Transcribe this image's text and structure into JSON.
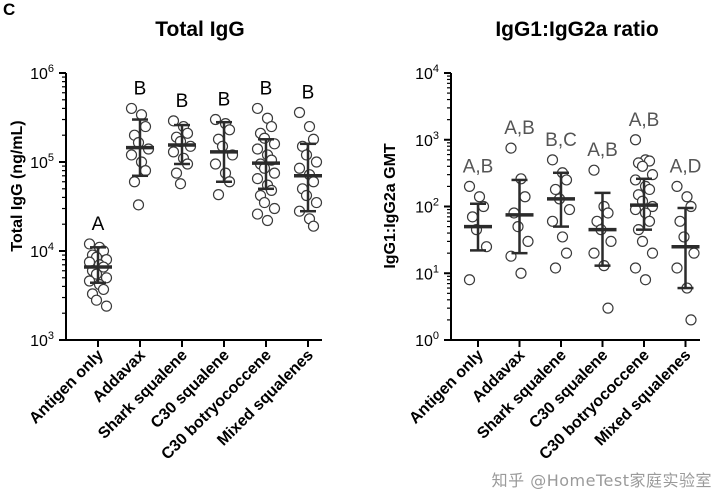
{
  "panel_letter": "C",
  "watermark": "知乎 @HomeTest家庭实验室",
  "colors": {
    "point": "#3a3a3a",
    "bar": "#2b2b2b",
    "axis": "#000000",
    "letter": "#555555"
  },
  "chart_data": [
    {
      "type": "scatter",
      "title": "Total IgG",
      "ylabel": "Total IgG (ng/mL)",
      "yscale": "log",
      "ylim": [
        1000,
        1000000
      ],
      "yticks": [
        {
          "value": 1000,
          "base": "10",
          "exp": "3"
        },
        {
          "value": 10000,
          "base": "10",
          "exp": "4"
        },
        {
          "value": 100000,
          "base": "10",
          "exp": "5"
        },
        {
          "value": 1000000,
          "base": "10",
          "exp": "6"
        }
      ],
      "categories": [
        "Antigen only",
        "Addavax",
        "Shark squalene",
        "C30 squalene",
        "C30 botryococcene",
        "Mixed squalenes"
      ],
      "letters": [
        "A",
        "B",
        "B",
        "B",
        "B",
        "B"
      ],
      "gmt": [
        6600,
        145000,
        155000,
        130000,
        97000,
        70000
      ],
      "sd_low": [
        4400,
        70000,
        95000,
        60000,
        50000,
        28000
      ],
      "sd_high": [
        11000,
        300000,
        260000,
        280000,
        180000,
        160000
      ],
      "points": [
        [
          12000,
          11000,
          10000,
          9000,
          8500,
          8000,
          7500,
          7000,
          6600,
          6000,
          5500,
          5000,
          4600,
          4200,
          3700,
          3300,
          2800,
          2400
        ],
        [
          400000,
          340000,
          250000,
          200000,
          165000,
          140000,
          120000,
          100000,
          80000,
          60000,
          33000
        ],
        [
          290000,
          250000,
          210000,
          190000,
          170000,
          150000,
          130000,
          110000,
          95000,
          75000,
          57000
        ],
        [
          300000,
          270000,
          230000,
          180000,
          150000,
          120000,
          95000,
          75000,
          60000,
          43000
        ],
        [
          400000,
          310000,
          250000,
          210000,
          185000,
          160000,
          140000,
          120000,
          105000,
          95000,
          85000,
          75000,
          65000,
          55000,
          48000,
          42000,
          35000,
          30000,
          26000,
          22000
        ],
        [
          360000,
          250000,
          180000,
          150000,
          120000,
          100000,
          85000,
          72000,
          60000,
          50000,
          42000,
          35000,
          28000,
          23000,
          19000
        ]
      ]
    },
    {
      "type": "scatter",
      "title": "IgG1:IgG2a ratio",
      "ylabel": "IgG1:IgG2a GMT",
      "yscale": "log",
      "ylim": [
        1,
        10000
      ],
      "yticks": [
        {
          "value": 1,
          "base": "10",
          "exp": "0"
        },
        {
          "value": 10,
          "base": "10",
          "exp": "1"
        },
        {
          "value": 100,
          "base": "10",
          "exp": "2"
        },
        {
          "value": 1000,
          "base": "10",
          "exp": "3"
        },
        {
          "value": 10000,
          "base": "10",
          "exp": "4"
        }
      ],
      "categories": [
        "Antigen only",
        "Addavax",
        "Shark squalene",
        "C30 squalene",
        "C30 botryococcene",
        "Mixed squalenes"
      ],
      "letters": [
        "A,B",
        "A,B",
        "B,C",
        "A,B",
        "A,B",
        "A,D"
      ],
      "gmt": [
        50,
        75,
        130,
        45,
        105,
        25
      ],
      "sd_low": [
        22,
        20,
        50,
        13,
        45,
        6
      ],
      "sd_high": [
        110,
        250,
        320,
        160,
        260,
        95
      ],
      "points": [
        [
          200,
          140,
          100,
          70,
          45,
          25,
          8
        ],
        [
          750,
          260,
          140,
          80,
          50,
          30,
          18,
          10
        ],
        [
          500,
          320,
          250,
          180,
          130,
          90,
          60,
          35,
          20,
          12
        ],
        [
          350,
          100,
          80,
          60,
          45,
          30,
          20,
          13,
          3
        ],
        [
          1000,
          500,
          480,
          450,
          400,
          300,
          250,
          200,
          180,
          150,
          120,
          100,
          90,
          80,
          60,
          45,
          30,
          20,
          12,
          8
        ],
        [
          200,
          140,
          100,
          60,
          35,
          20,
          12,
          6,
          2
        ]
      ]
    }
  ]
}
